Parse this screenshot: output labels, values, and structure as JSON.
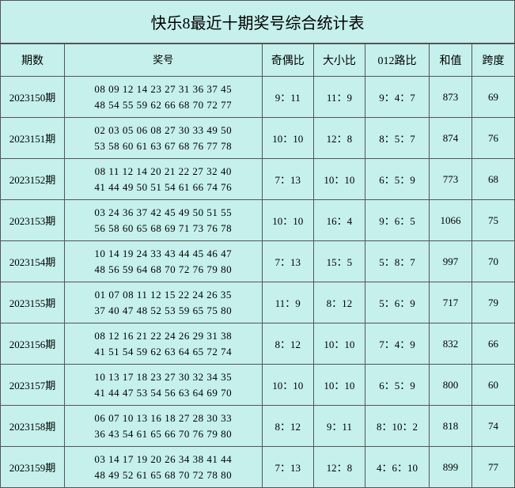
{
  "title": "快乐8最近十期奖号综合统计表",
  "headers": {
    "period": "期数",
    "numbers": "奖号",
    "odd_even": "奇偶比",
    "big_small": "大小比",
    "route_012": "012路比",
    "sum": "和值",
    "span": "跨度"
  },
  "colors": {
    "background": "#c5f0ec",
    "border": "#555555",
    "text": "#000000"
  },
  "rows": [
    {
      "period": "2023150期",
      "line1": "08 09 12 14 23 27 31 36 37 45",
      "line2": "48 54 55 59 62 66 68 70 72 77",
      "odd_even": "9：11",
      "big_small": "11：9",
      "route_012": "9：4：7",
      "sum": "873",
      "span": "69"
    },
    {
      "period": "2023151期",
      "line1": "02 03 05 06 08 27 30 33 49 50",
      "line2": "53 58 60 61 63 67 68 76 77 78",
      "odd_even": "10：10",
      "big_small": "12：8",
      "route_012": "8：5：7",
      "sum": "874",
      "span": "76"
    },
    {
      "period": "2023152期",
      "line1": "08 11 12 14 20 21 22 27 32 40",
      "line2": "41 44 49 50 51 54 61 66 74 76",
      "odd_even": "7：13",
      "big_small": "10：10",
      "route_012": "6：5：9",
      "sum": "773",
      "span": "68"
    },
    {
      "period": "2023153期",
      "line1": "03 24 36 37 42 45 49 50 51 55",
      "line2": "56 58 60 65 68 69 71 73 76 78",
      "odd_even": "10：10",
      "big_small": "16：4",
      "route_012": "9：6：5",
      "sum": "1066",
      "span": "75"
    },
    {
      "period": "2023154期",
      "line1": "10 14 19 24 33 43 44 45 46 47",
      "line2": "48 56 59 64 68 70 72 76 79 80",
      "odd_even": "7：13",
      "big_small": "15：5",
      "route_012": "5：8：7",
      "sum": "997",
      "span": "70"
    },
    {
      "period": "2023155期",
      "line1": "01 07 08 11 12 15 22 24 26 35",
      "line2": "37 40 47 48 52 53 59 65 75 80",
      "odd_even": "11：9",
      "big_small": "8：12",
      "route_012": "5：6：9",
      "sum": "717",
      "span": "79"
    },
    {
      "period": "2023156期",
      "line1": "08 12 16 21 22 24 26 29 31 38",
      "line2": "41 51 54 59 62 63 64 65 72 74",
      "odd_even": "8：12",
      "big_small": "10：10",
      "route_012": "7：4：9",
      "sum": "832",
      "span": "66"
    },
    {
      "period": "2023157期",
      "line1": "10 13 17 18 23 27 30 32 34 35",
      "line2": "41 44 47 53 54 56 63 64 69 70",
      "odd_even": "10：10",
      "big_small": "10：10",
      "route_012": "6：5：9",
      "sum": "800",
      "span": "60"
    },
    {
      "period": "2023158期",
      "line1": "06 07 10 13 16 18 27 28 30 33",
      "line2": "36 43 54 61 65 66 70 76 79 80",
      "odd_even": "8：12",
      "big_small": "9：11",
      "route_012": "8：10：2",
      "sum": "818",
      "span": "74"
    },
    {
      "period": "2023159期",
      "line1": "03 14 17 19 20 26 34 38 41 44",
      "line2": "48 49 52 61 65 68 70 72 78 80",
      "odd_even": "7：13",
      "big_small": "12：8",
      "route_012": "4：6：10",
      "sum": "899",
      "span": "77"
    }
  ]
}
